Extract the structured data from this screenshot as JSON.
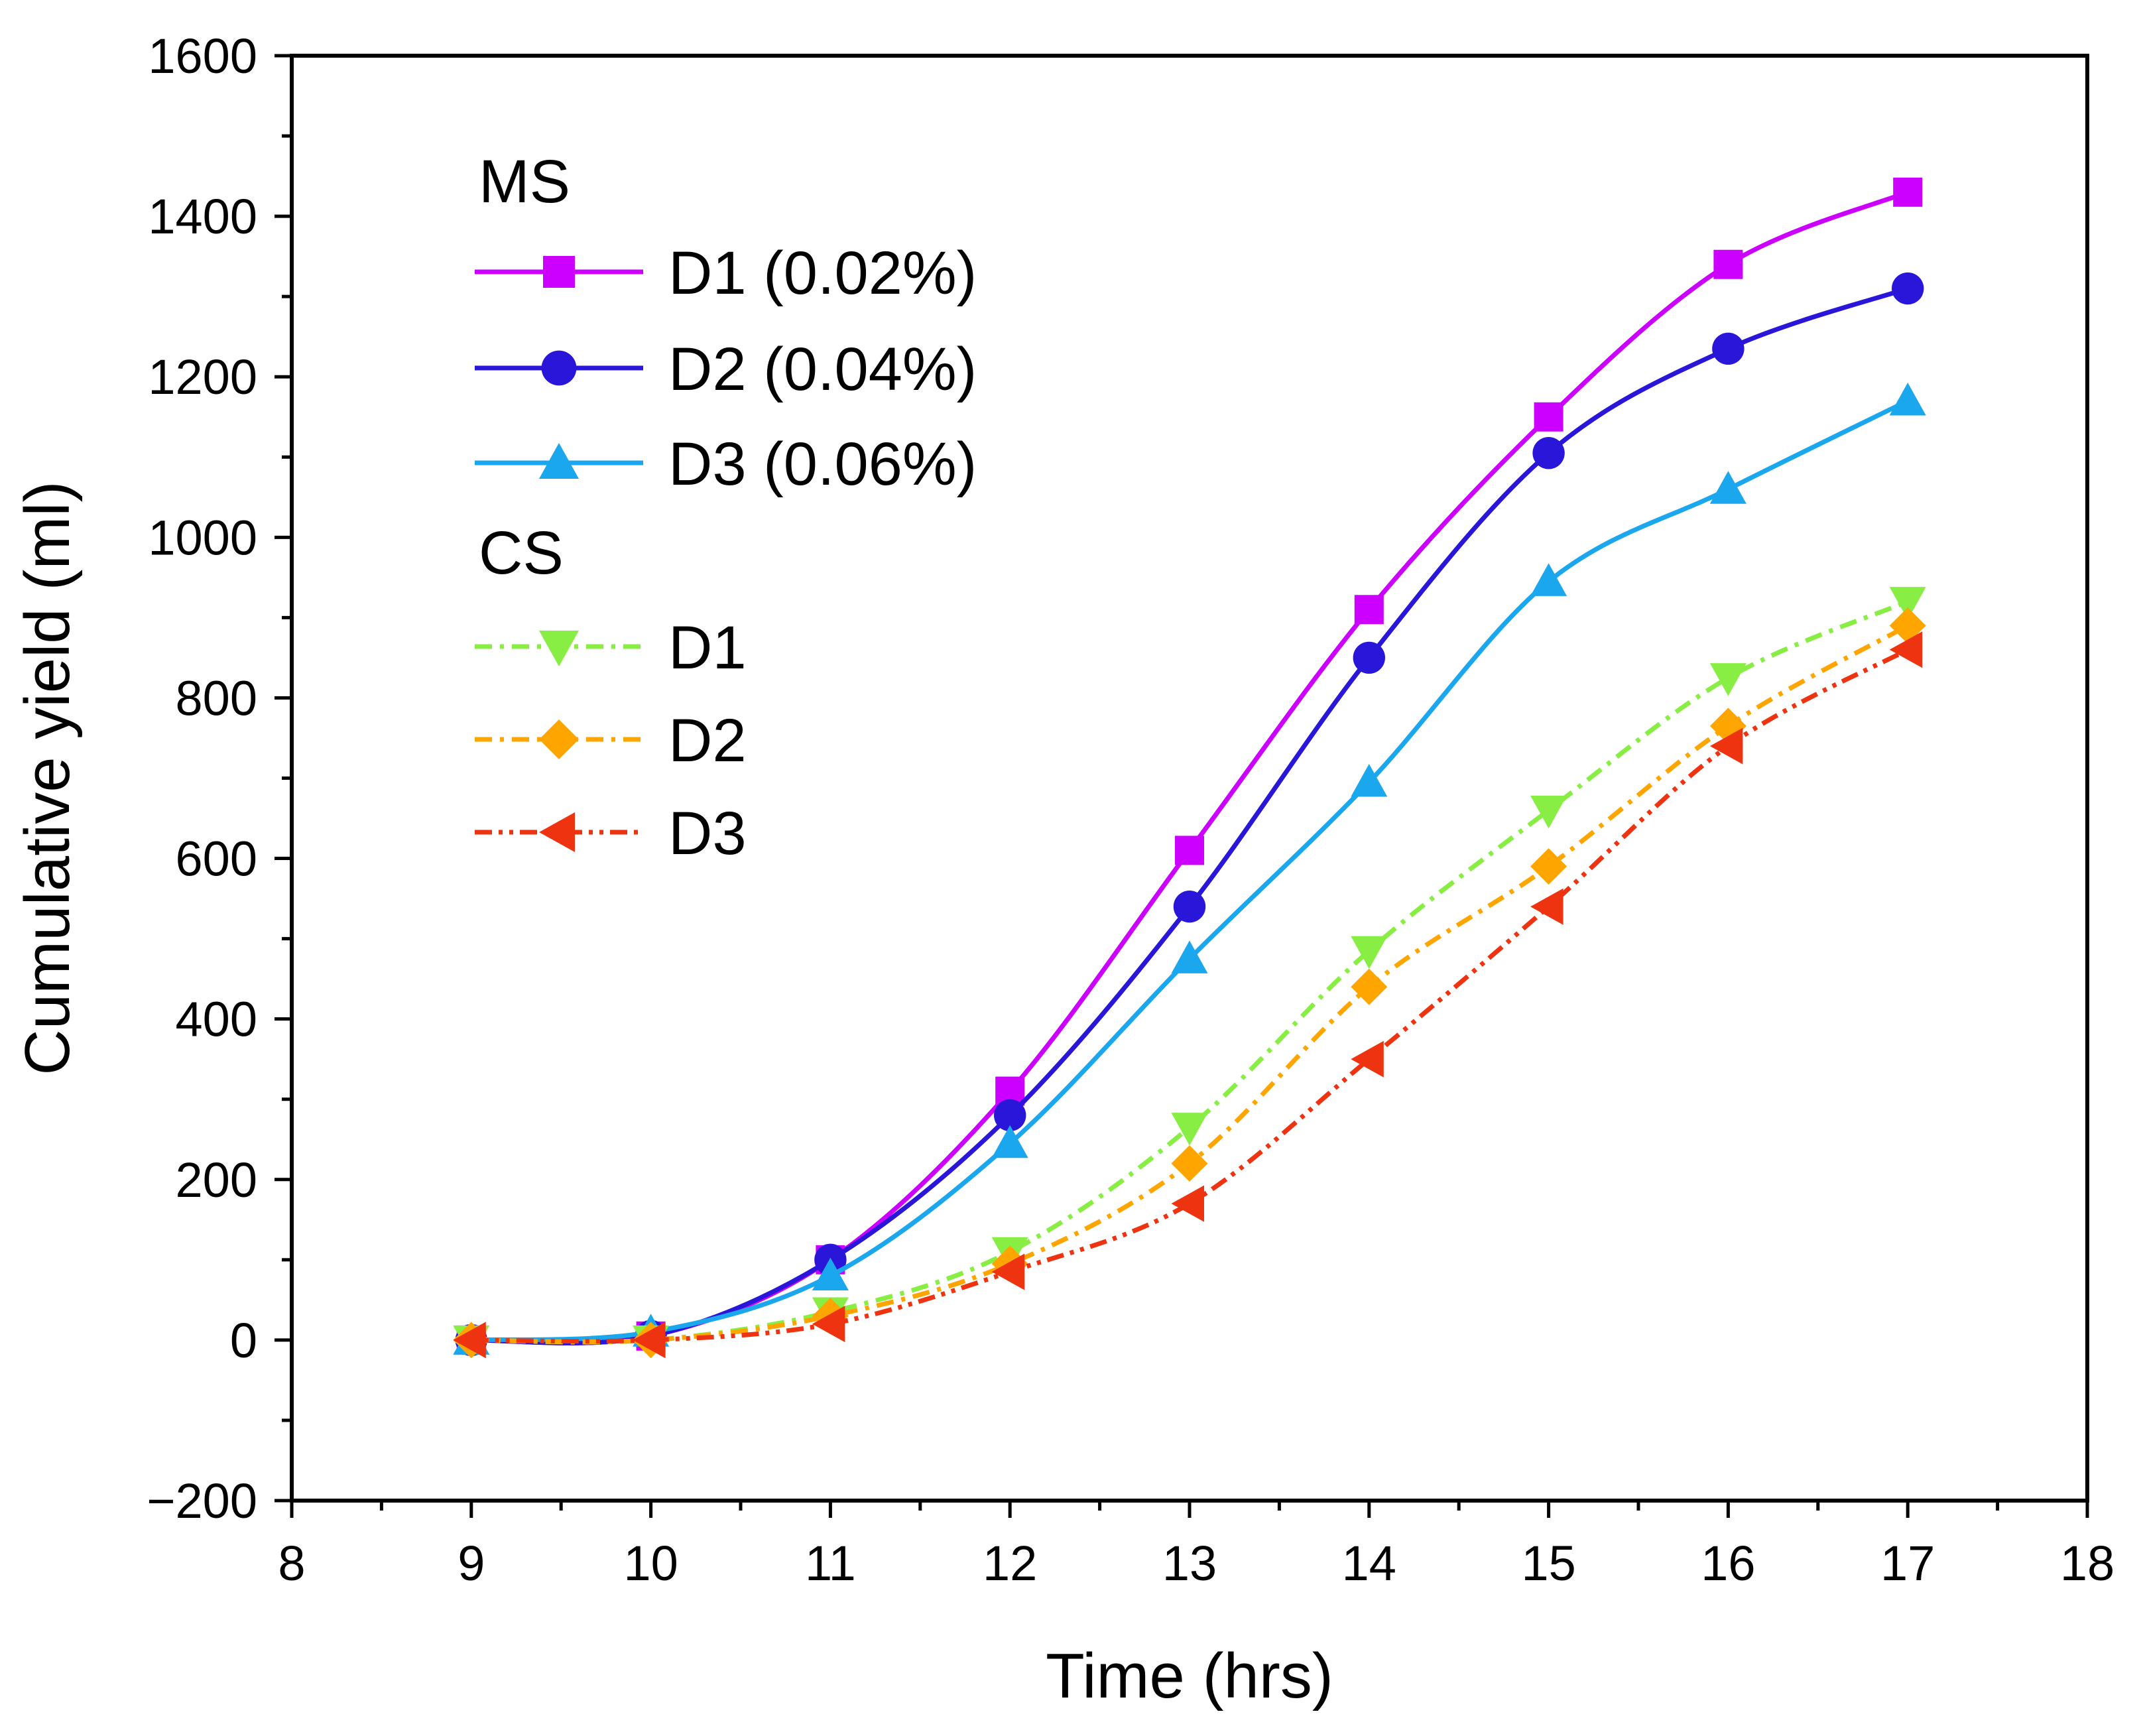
{
  "chart_data": {
    "type": "line",
    "title": "",
    "xlabel": "Time (hrs)",
    "ylabel": "Cumulative yield (ml)",
    "xlim": [
      8,
      18
    ],
    "ylim": [
      -200,
      1600
    ],
    "xticks": [
      8,
      9,
      10,
      11,
      12,
      13,
      14,
      15,
      16,
      17,
      18
    ],
    "yticks": [
      -200,
      0,
      200,
      400,
      600,
      800,
      1000,
      1200,
      1400,
      1600
    ],
    "xtick_labels": [
      "8",
      "9",
      "10",
      "11",
      "12",
      "13",
      "14",
      "15",
      "16",
      "17",
      "18"
    ],
    "ytick_labels": [
      "−200",
      "0",
      "200",
      "400",
      "600",
      "800",
      "1000",
      "1200",
      "1400",
      "1600"
    ],
    "grid": false,
    "legend_position": "top-left",
    "legend_groups": [
      {
        "title": "MS",
        "series": [
          0,
          1,
          2
        ]
      },
      {
        "title": "CS",
        "series": [
          3,
          4,
          5
        ]
      }
    ],
    "x": [
      9,
      10,
      11,
      12,
      13,
      14,
      15,
      16,
      17
    ],
    "series": [
      {
        "name": "D1 (0.02%)",
        "group": "MS",
        "color": "#cc00ff",
        "marker": "square",
        "linestyle": "solid",
        "values": [
          0,
          5,
          100,
          310,
          610,
          910,
          1150,
          1340,
          1430
        ]
      },
      {
        "name": "D2 (0.04%)",
        "group": "MS",
        "color": "#2a16d8",
        "marker": "circle",
        "linestyle": "solid",
        "values": [
          0,
          5,
          100,
          280,
          540,
          850,
          1105,
          1235,
          1310
        ]
      },
      {
        "name": "D3 (0.06%)",
        "group": "MS",
        "color": "#1aa7ee",
        "marker": "triangle-up",
        "linestyle": "solid",
        "values": [
          0,
          10,
          80,
          245,
          475,
          695,
          945,
          1060,
          1170
        ]
      },
      {
        "name": "D1",
        "group": "CS",
        "color": "#88ee44",
        "marker": "triangle-down",
        "linestyle": "dash-dot",
        "values": [
          0,
          0,
          35,
          110,
          265,
          485,
          660,
          825,
          920
        ]
      },
      {
        "name": "D2",
        "group": "CS",
        "color": "#ffa500",
        "marker": "diamond",
        "linestyle": "dash-dot",
        "values": [
          0,
          0,
          30,
          95,
          220,
          440,
          590,
          765,
          890
        ]
      },
      {
        "name": "D3",
        "group": "CS",
        "color": "#ee3311",
        "marker": "triangle-left",
        "linestyle": "dash-dot-dot",
        "values": [
          0,
          0,
          20,
          85,
          170,
          350,
          540,
          740,
          860
        ]
      }
    ]
  }
}
